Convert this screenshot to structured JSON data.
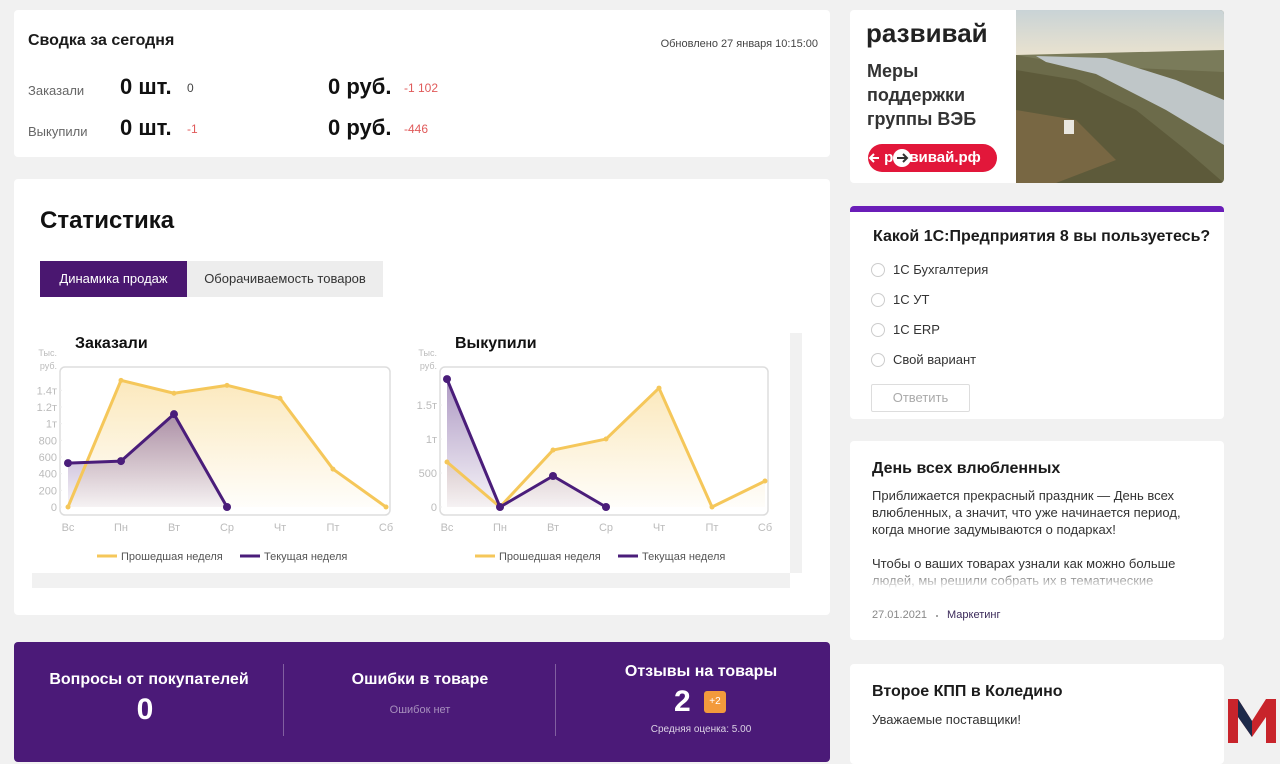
{
  "summary": {
    "title": "Сводка за сегодня",
    "updated": "Обновлено 27 января 10:15:00",
    "rows": [
      {
        "label": "Заказали",
        "count": "0 шт.",
        "count_delta": "0",
        "sum": "0 руб.",
        "sum_delta": "-1 102"
      },
      {
        "label": "Выкупили",
        "count": "0 шт.",
        "count_delta": "-1",
        "sum": "0 руб.",
        "sum_delta": "-446"
      }
    ]
  },
  "statistics": {
    "title": "Статистика",
    "tabs": [
      "Динамика продаж",
      "Оборачиваемость товаров"
    ],
    "active_tab": 0
  },
  "chart_data": [
    {
      "type": "line",
      "title": "Заказали",
      "y_label": [
        "Тыс.",
        "руб."
      ],
      "categories": [
        "Вс",
        "Пн",
        "Вт",
        "Ср",
        "Чт",
        "Пт",
        "Сб"
      ],
      "series": [
        {
          "name": "Прошедшая неделя",
          "color": "#f5c75a",
          "values": [
            0,
            1520,
            1365,
            1460,
            1305,
            455,
            0
          ]
        },
        {
          "name": "Текущая неделя",
          "color": "#4a1d7a",
          "values": [
            527,
            551,
            1114,
            0,
            null,
            null,
            null
          ]
        }
      ],
      "ylim": [
        0,
        1680
      ],
      "yticks": [
        0,
        200,
        400,
        600,
        800,
        {
          "value": 1000,
          "label": "1т"
        },
        {
          "value": 1200,
          "label": "1.2т"
        },
        {
          "value": 1400,
          "label": "1.4т"
        }
      ]
    },
    {
      "type": "line",
      "title": "Выкупили",
      "y_label": [
        "Тыс.",
        "руб."
      ],
      "categories": [
        "Вс",
        "Пн",
        "Вт",
        "Ср",
        "Чт",
        "Пт",
        "Сб"
      ],
      "series": [
        {
          "name": "Прошедшая неделя",
          "color": "#f5c75a",
          "values": [
            662,
            0,
            838,
            1000,
            1750,
            0,
            382
          ]
        },
        {
          "name": "Текущая неделя",
          "color": "#4a1d7a",
          "values": [
            1882,
            0,
            456,
            0,
            null,
            null,
            null
          ]
        }
      ],
      "ylim": [
        0,
        2060
      ],
      "yticks": [
        0,
        500,
        {
          "value": 1000,
          "label": "1т"
        },
        {
          "value": 1500,
          "label": "1.5т"
        }
      ]
    }
  ],
  "counters": [
    {
      "title": "Вопросы от покупателей",
      "value": 0
    },
    {
      "title": "Ошибки в товаре",
      "note": "Ошибок нет"
    },
    {
      "title": "Отзывы на товары",
      "value": 2,
      "badge": "+2",
      "note": "Средняя оценка: 5.00"
    }
  ],
  "banner": {
    "brand": "развивай",
    "lines": [
      "Меры",
      "поддержки",
      "группы ВЭБ"
    ],
    "button": "развивай.рф"
  },
  "poll": {
    "question": "Какой 1С:Предприятия 8 вы пользуетесь?",
    "options": [
      "1С Бухгалтерия",
      "1С УТ",
      "1С ERP",
      "Свой вариант"
    ],
    "button": "Ответить"
  },
  "news": [
    {
      "title": "День всех влюбленных",
      "paragraphs": [
        "Приближается прекрасный праздник — День всех влюбленных, а значит, что уже начинается период, когда многие задумываются о подарках!",
        "Чтобы о ваших товарах узнали как можно больше людей, мы решили собрать их в тематические подборки!"
      ],
      "date": "27.01.2021",
      "tag": "Маркетинг"
    },
    {
      "title": "Второе КПП в Коледино",
      "paragraphs": [
        "Уважаемые поставщики!"
      ]
    }
  ]
}
